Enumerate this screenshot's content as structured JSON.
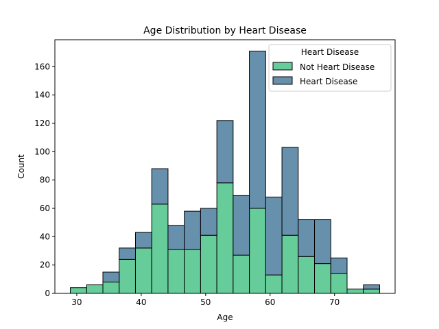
{
  "chart_data": {
    "type": "bar",
    "title": "Age Distribution by Heart Disease",
    "xlabel": "Age",
    "ylabel": "Count",
    "xlim": [
      26.6,
      79.4
    ],
    "ylim": [
      0,
      179
    ],
    "xticks": [
      30,
      40,
      50,
      60,
      70
    ],
    "yticks": [
      0,
      20,
      40,
      60,
      80,
      100,
      120,
      140,
      160
    ],
    "bin_edges": [
      29,
      31.526,
      34.053,
      36.579,
      39.105,
      41.632,
      44.158,
      46.684,
      49.211,
      51.737,
      54.263,
      56.789,
      59.316,
      61.842,
      64.368,
      66.895,
      69.421,
      71.947,
      74.474,
      77
    ],
    "stacked": true,
    "series": [
      {
        "name": "Not Heart Disease",
        "color": "#66cc99",
        "values": [
          4,
          6,
          8,
          24,
          32,
          63,
          31,
          31,
          41,
          78,
          27,
          60,
          13,
          41,
          26,
          21,
          14,
          3,
          3
        ]
      },
      {
        "name": "Heart Disease",
        "color": "#6690ac",
        "values": [
          0,
          0,
          7,
          8,
          11,
          25,
          17,
          27,
          19,
          44,
          42,
          111,
          55,
          62,
          26,
          31,
          11,
          0,
          3
        ]
      }
    ],
    "legend": {
      "title": "Heart Disease",
      "placement": "top-right"
    },
    "grid": false
  }
}
